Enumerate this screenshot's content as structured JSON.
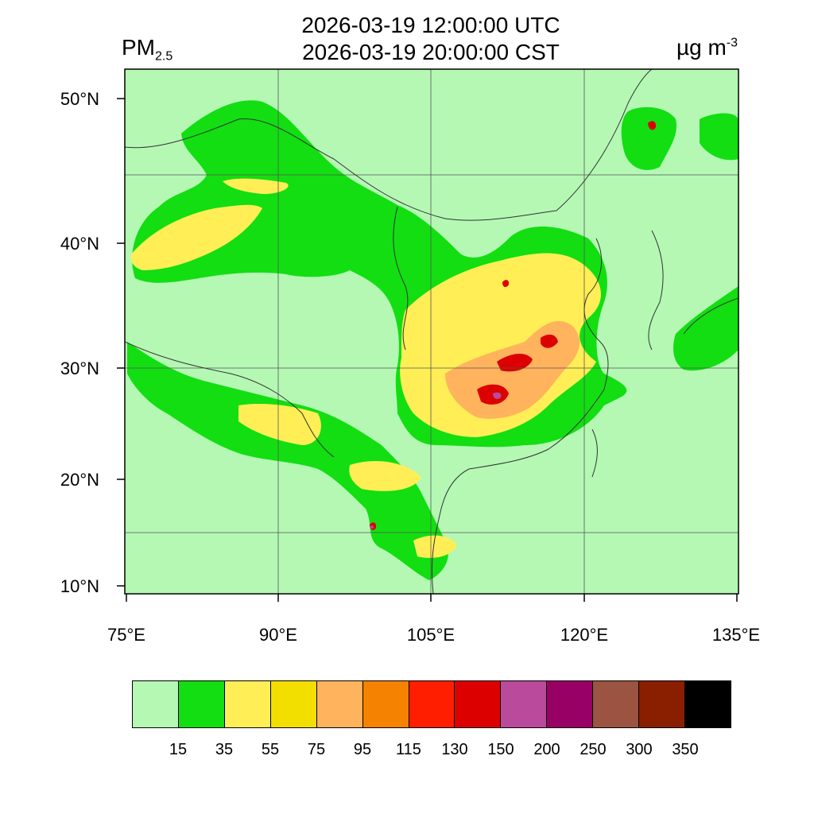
{
  "header": {
    "time_utc": "2026-03-19 12:00:00 UTC",
    "time_cst": "2026-03-19 20:00:00 CST",
    "variable_main": "PM",
    "variable_sub": "2.5",
    "unit_main": "µg m",
    "unit_sup": "-3"
  },
  "map": {
    "projection": "lat-lon",
    "lon_range": [
      75,
      135
    ],
    "lat_range": [
      9,
      52
    ],
    "lat_ticks": [
      "50°N",
      "40°N",
      "30°N",
      "20°N",
      "10°N"
    ],
    "lon_ticks": [
      "75°E",
      "90°E",
      "105°E",
      "120°E",
      "135°E"
    ],
    "grid_lines": true,
    "background_color": "#b4f8b4"
  },
  "colorbar": {
    "colors": [
      "#b4f8b4",
      "#12de12",
      "#ffee55",
      "#f2df00",
      "#ffb35d",
      "#f58200",
      "#ff1f00",
      "#dc0000",
      "#b94a9c",
      "#990066",
      "#9a5441",
      "#8a1f00",
      "#000000"
    ],
    "labels": [
      "15",
      "35",
      "55",
      "75",
      "95",
      "115",
      "130",
      "150",
      "200",
      "250",
      "300",
      "350"
    ]
  }
}
